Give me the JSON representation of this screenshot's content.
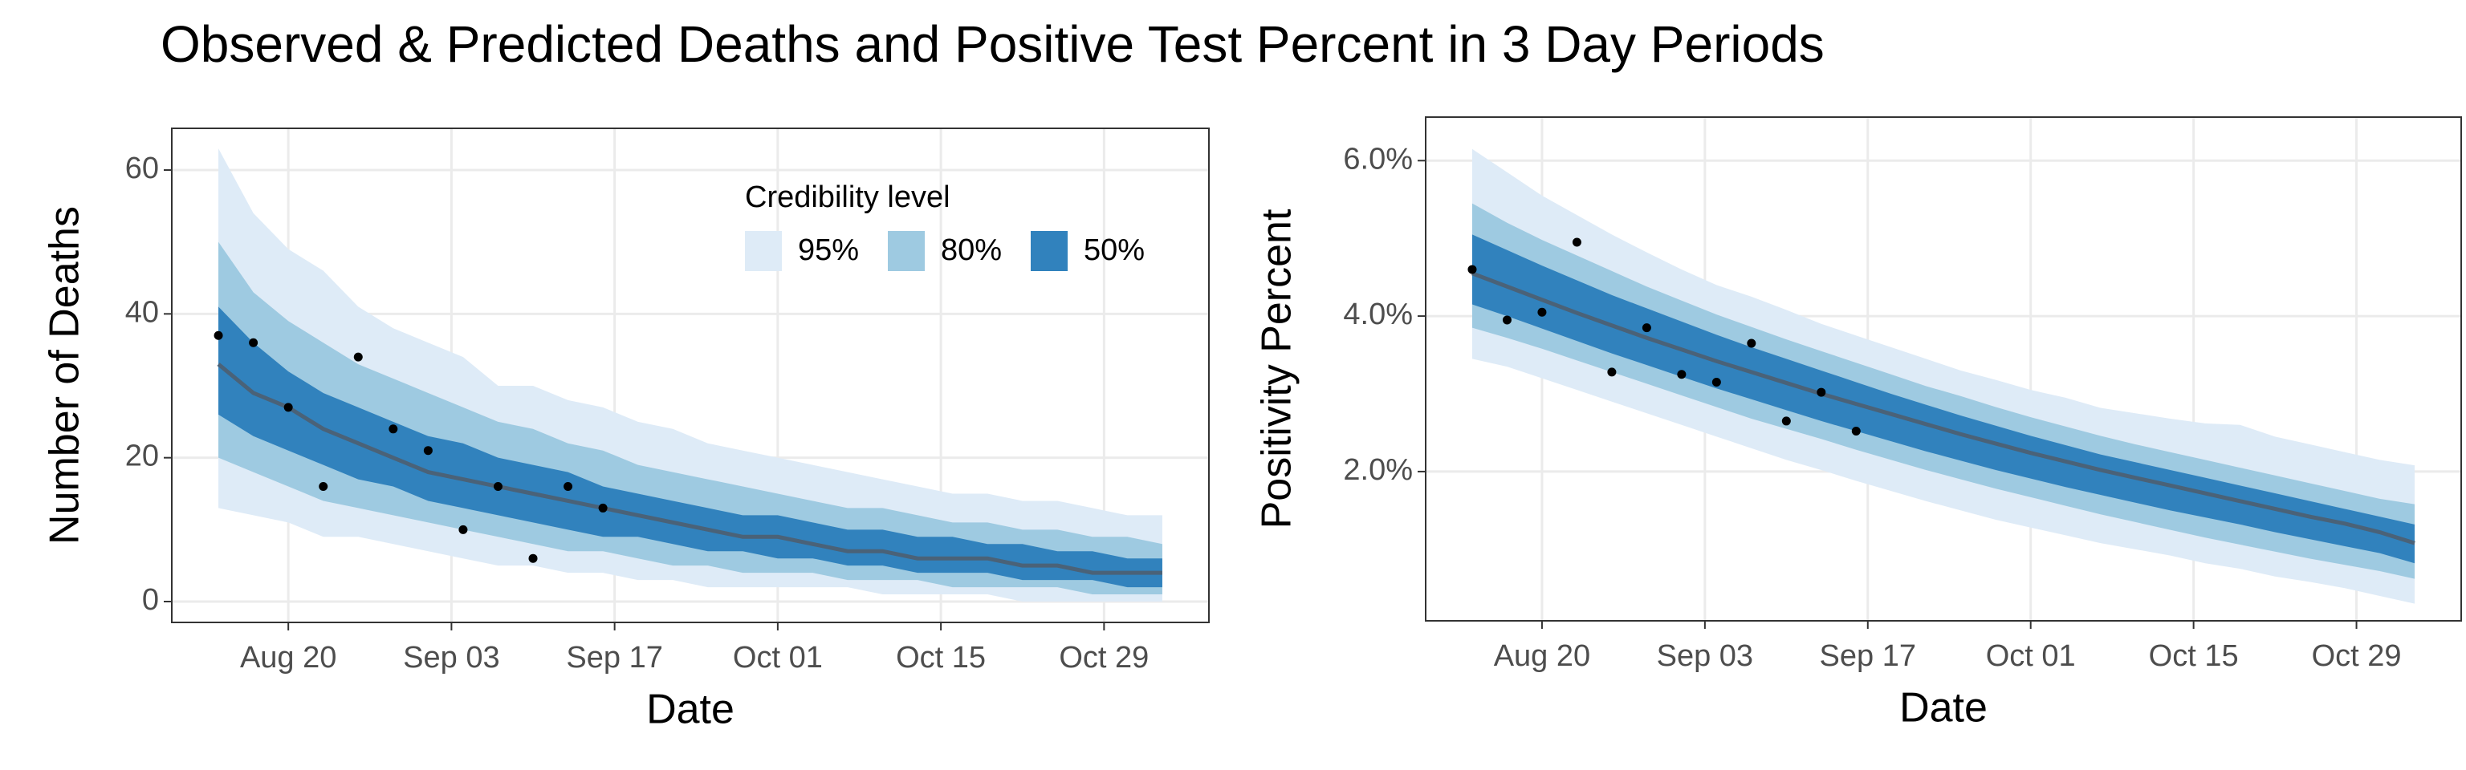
{
  "title": "Observed & Predicted Deaths and Positive Test Percent in 3 Day Periods",
  "chart_data": [
    {
      "type": "band",
      "x_label": "Date",
      "y_label": "Number of Deaths",
      "x": [
        "Aug 14",
        "Aug 17",
        "Aug 20",
        "Aug 23",
        "Aug 26",
        "Aug 29",
        "Sep 01",
        "Sep 04",
        "Sep 07",
        "Sep 10",
        "Sep 13",
        "Sep 16",
        "Sep 19",
        "Sep 22",
        "Sep 25",
        "Sep 28",
        "Oct 01",
        "Oct 04",
        "Oct 07",
        "Oct 10",
        "Oct 13",
        "Oct 16",
        "Oct 19",
        "Oct 22",
        "Oct 25",
        "Oct 28",
        "Oct 31",
        "Nov 03"
      ],
      "xlim": [
        "Aug 10",
        "Nov 07"
      ],
      "xticks": [
        "Aug 20",
        "Sep 03",
        "Sep 17",
        "Oct 01",
        "Oct 15",
        "Oct 29"
      ],
      "ylim": [
        -2.9,
        65.8
      ],
      "yticks": [
        0,
        20,
        40,
        60
      ],
      "grid": true,
      "legend": {
        "title": "Credibility level"
      },
      "series": [
        {
          "name": "95%",
          "color": "#deebf7",
          "upper": [
            63,
            54,
            49,
            46,
            41,
            38,
            36,
            34,
            30,
            30,
            28,
            27,
            25,
            24,
            22,
            21,
            20,
            19,
            18,
            17,
            16,
            15,
            15,
            14,
            14,
            13,
            12,
            12
          ],
          "lower": [
            13,
            12,
            11,
            9,
            9,
            8,
            7,
            6,
            5,
            5,
            4,
            4,
            3,
            3,
            2,
            2,
            2,
            2,
            2,
            1,
            1,
            1,
            1,
            0,
            0,
            0,
            0,
            0
          ]
        },
        {
          "name": "80%",
          "color": "#9ecae1",
          "upper": [
            50,
            43,
            39,
            36,
            33,
            31,
            29,
            27,
            25,
            24,
            22,
            21,
            19,
            18,
            17,
            16,
            15,
            14,
            13,
            13,
            12,
            11,
            11,
            10,
            10,
            9,
            9,
            8
          ],
          "lower": [
            20,
            18,
            16,
            14,
            13,
            12,
            11,
            10,
            9,
            8,
            7,
            7,
            6,
            5,
            5,
            4,
            4,
            4,
            3,
            3,
            3,
            2,
            2,
            2,
            2,
            1,
            1,
            1
          ]
        },
        {
          "name": "50%",
          "color": "#3182bd",
          "upper": [
            41,
            36,
            32,
            29,
            27,
            25,
            23,
            22,
            20,
            19,
            18,
            16,
            15,
            14,
            13,
            12,
            12,
            11,
            10,
            10,
            9,
            9,
            8,
            8,
            7,
            7,
            6,
            6
          ],
          "lower": [
            26,
            23,
            21,
            19,
            17,
            16,
            14,
            13,
            12,
            11,
            10,
            9,
            9,
            8,
            7,
            7,
            6,
            6,
            5,
            5,
            4,
            4,
            4,
            3,
            3,
            3,
            2,
            2
          ]
        }
      ],
      "median": {
        "color": "#4a6278",
        "values": [
          33,
          29,
          27,
          24,
          22,
          20,
          18,
          17,
          16,
          15,
          14,
          13,
          12,
          11,
          10,
          9,
          9,
          8,
          7,
          7,
          6,
          6,
          6,
          5,
          5,
          4,
          4,
          4
        ]
      },
      "observed": {
        "color": "#000000",
        "values": [
          37,
          36,
          27,
          16,
          34,
          24,
          21,
          10,
          16,
          6,
          16,
          13,
          null,
          null,
          null,
          null,
          null,
          null,
          null,
          null,
          null,
          null,
          null,
          null,
          null,
          null,
          null,
          null
        ]
      }
    },
    {
      "type": "band",
      "x_label": "Date",
      "y_label": "Positivity Percent",
      "x": [
        "Aug 14",
        "Aug 17",
        "Aug 20",
        "Aug 23",
        "Aug 26",
        "Aug 29",
        "Sep 01",
        "Sep 04",
        "Sep 07",
        "Sep 10",
        "Sep 13",
        "Sep 16",
        "Sep 19",
        "Sep 22",
        "Sep 25",
        "Sep 28",
        "Oct 01",
        "Oct 04",
        "Oct 07",
        "Oct 10",
        "Oct 13",
        "Oct 16",
        "Oct 19",
        "Oct 22",
        "Oct 25",
        "Oct 28",
        "Oct 31",
        "Nov 03"
      ],
      "xlim": [
        "Aug 10",
        "Nov 07"
      ],
      "xticks": [
        "Aug 20",
        "Sep 03",
        "Sep 17",
        "Oct 01",
        "Oct 15",
        "Oct 29"
      ],
      "ylim": [
        0.08,
        6.56
      ],
      "yticks": [
        {
          "value": 2,
          "label": "2.0%"
        },
        {
          "value": 4,
          "label": "4.0%"
        },
        {
          "value": 6,
          "label": "6.0%"
        }
      ],
      "grid": true,
      "series": [
        {
          "color": "#deebf7",
          "upper": [
            6.15,
            5.85,
            5.55,
            5.3,
            5.05,
            4.82,
            4.6,
            4.4,
            4.25,
            4.08,
            3.9,
            3.75,
            3.6,
            3.45,
            3.3,
            3.18,
            3.05,
            2.95,
            2.82,
            2.75,
            2.68,
            2.62,
            2.6,
            2.45,
            2.35,
            2.25,
            2.15,
            2.08
          ],
          "lower": [
            3.45,
            3.35,
            3.2,
            3.05,
            2.9,
            2.75,
            2.6,
            2.45,
            2.3,
            2.15,
            2.02,
            1.88,
            1.75,
            1.62,
            1.5,
            1.38,
            1.28,
            1.18,
            1.08,
            1.0,
            0.92,
            0.82,
            0.75,
            0.65,
            0.58,
            0.5,
            0.4,
            0.3
          ]
        },
        {
          "color": "#9ecae1",
          "upper": [
            5.45,
            5.2,
            4.98,
            4.78,
            4.58,
            4.38,
            4.2,
            4.02,
            3.86,
            3.7,
            3.55,
            3.4,
            3.25,
            3.1,
            2.97,
            2.83,
            2.7,
            2.58,
            2.46,
            2.35,
            2.25,
            2.15,
            2.05,
            1.95,
            1.85,
            1.75,
            1.65,
            1.58
          ],
          "lower": [
            3.85,
            3.72,
            3.58,
            3.43,
            3.28,
            3.13,
            2.98,
            2.83,
            2.68,
            2.55,
            2.42,
            2.28,
            2.15,
            2.02,
            1.9,
            1.78,
            1.67,
            1.56,
            1.45,
            1.35,
            1.25,
            1.15,
            1.06,
            0.97,
            0.88,
            0.8,
            0.72,
            0.62
          ]
        },
        {
          "color": "#3182bd",
          "upper": [
            5.05,
            4.85,
            4.65,
            4.46,
            4.27,
            4.1,
            3.93,
            3.76,
            3.6,
            3.45,
            3.3,
            3.15,
            3.0,
            2.86,
            2.72,
            2.59,
            2.46,
            2.34,
            2.22,
            2.12,
            2.02,
            1.92,
            1.82,
            1.72,
            1.62,
            1.52,
            1.42,
            1.32
          ],
          "lower": [
            4.15,
            4.0,
            3.84,
            3.68,
            3.52,
            3.37,
            3.22,
            3.07,
            2.93,
            2.79,
            2.65,
            2.52,
            2.39,
            2.26,
            2.14,
            2.02,
            1.91,
            1.8,
            1.7,
            1.6,
            1.5,
            1.41,
            1.32,
            1.22,
            1.13,
            1.04,
            0.95,
            0.82
          ]
        }
      ],
      "median": {
        "color": "#4a6278",
        "values": [
          4.55,
          4.38,
          4.21,
          4.04,
          3.88,
          3.72,
          3.57,
          3.42,
          3.28,
          3.14,
          3.0,
          2.87,
          2.74,
          2.61,
          2.48,
          2.36,
          2.24,
          2.13,
          2.02,
          1.92,
          1.82,
          1.72,
          1.62,
          1.52,
          1.42,
          1.33,
          1.22,
          1.08
        ]
      },
      "observed": {
        "color": "#000000",
        "values": [
          4.6,
          3.95,
          4.05,
          4.95,
          3.28,
          3.85,
          3.25,
          3.15,
          3.65,
          2.65,
          3.02,
          2.52,
          null,
          null,
          null,
          null,
          null,
          null,
          null,
          null,
          null,
          null,
          null,
          null,
          null,
          null,
          null,
          null
        ]
      }
    }
  ]
}
